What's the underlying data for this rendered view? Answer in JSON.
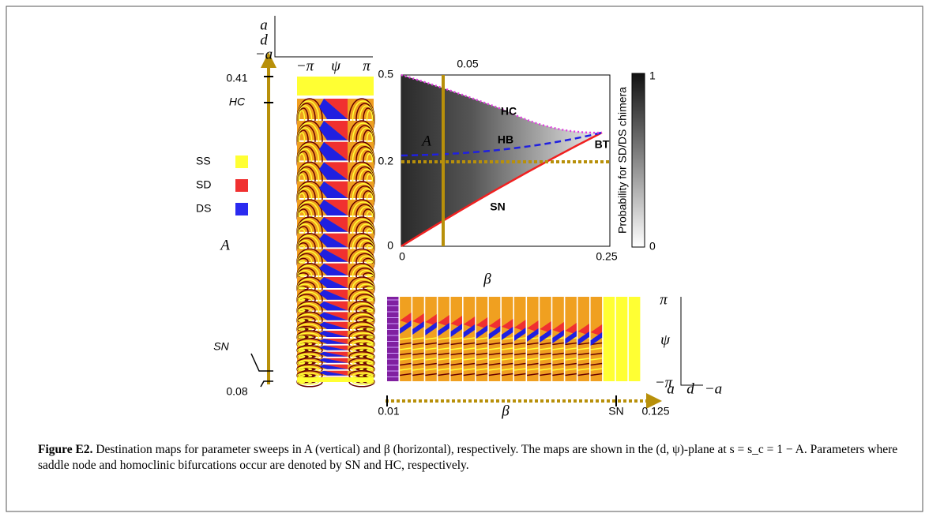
{
  "figure": {
    "left_panel": {
      "axis_top": "a",
      "axis_mid": "d",
      "axis_bottom": "−a",
      "psi_min": "−π",
      "psi": "ψ",
      "psi_max": "π",
      "tick_top": "0.41",
      "hc": "HC",
      "param": "A",
      "sn": "SN",
      "tick_bottom": "0.08",
      "legend": [
        {
          "name": "SS",
          "color": "#ffff33"
        },
        {
          "name": "SD",
          "color": "#f03030"
        },
        {
          "name": "DS",
          "color": "#2a2af0"
        }
      ]
    },
    "inset": {
      "y_label": "A",
      "x_label": "β",
      "y_top": "0.5",
      "y_mid": "0.2",
      "y_zero": "0",
      "x_zero": "0",
      "x_end": "0.25",
      "x_marker": "0.05",
      "hc": "HC",
      "hb": "HB",
      "bt": "BT",
      "sn": "SN",
      "colorbar_label": "Probability for SD/DS chimera",
      "colorbar_max": "1",
      "colorbar_min": "0"
    },
    "bottom_panel": {
      "psi_max": "π",
      "psi": "ψ",
      "psi_min": "−π",
      "axis_left": "a",
      "axis_mid": "d",
      "axis_right": "−a",
      "tick_start": "0.01",
      "param": "β",
      "sn": "SN",
      "tick_end": "0.125"
    }
  },
  "caption": {
    "label": "Figure E2.",
    "text": "Destination maps for parameter sweeps in A (vertical) and β (horizontal), respectively. The maps are shown in the (d, ψ)-plane at s = s_c = 1 − A. Parameters where saddle node and homoclinic bifurcations occur are denoted by SN and HC, respectively."
  }
}
